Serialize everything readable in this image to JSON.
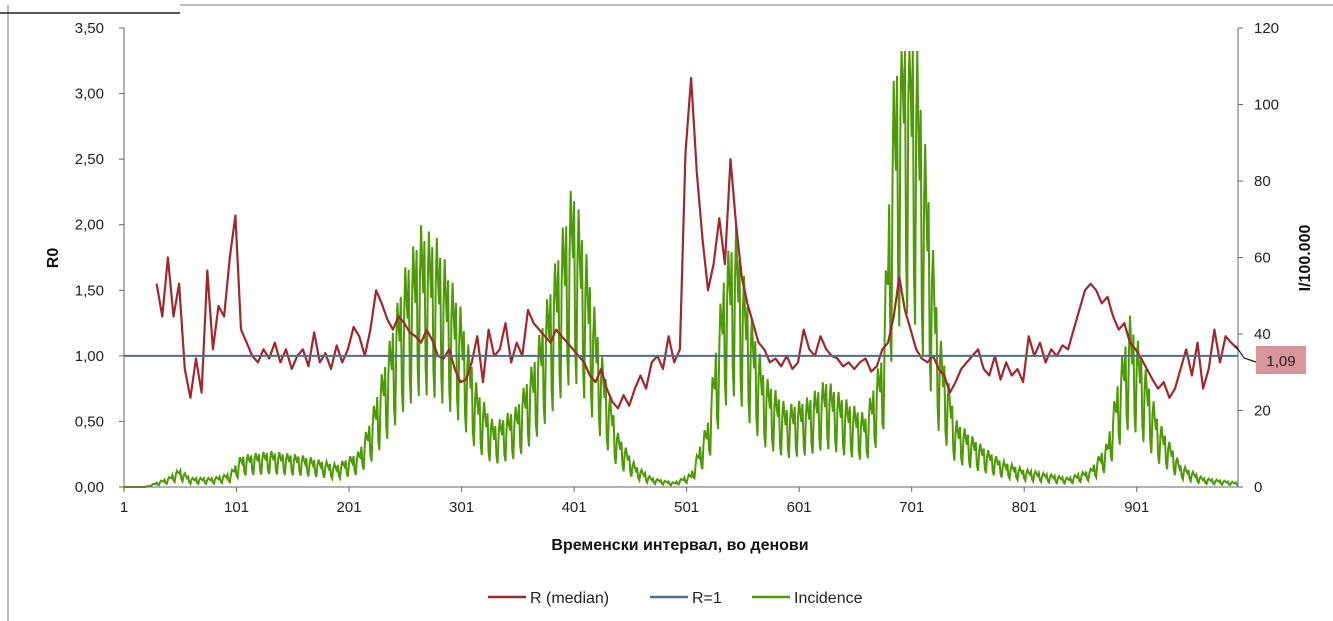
{
  "chart_data": {
    "type": "line",
    "title": "",
    "xlabel": "Временски интервал, во денови",
    "ylabel": "R0",
    "y2label": "I/100.000",
    "xlim": [
      1,
      991
    ],
    "ylim": [
      0,
      3.5
    ],
    "y2lim": [
      0,
      120
    ],
    "x_ticks": [
      "1",
      "101",
      "201",
      "301",
      "401",
      "501",
      "601",
      "701",
      "801",
      "901"
    ],
    "y_ticks": [
      "0,00",
      "0,50",
      "1,00",
      "1,50",
      "2,00",
      "2,50",
      "3,00",
      "3,50"
    ],
    "y2_ticks": [
      "0",
      "20",
      "40",
      "60",
      "80",
      "100",
      "120"
    ],
    "grid": false,
    "legend": "bottom",
    "callout": "1,09",
    "series": [
      {
        "name": "R (median)",
        "axis": "left",
        "color": "#a0282d",
        "x": [
          30,
          35,
          40,
          45,
          50,
          55,
          60,
          65,
          70,
          75,
          80,
          85,
          90,
          95,
          100,
          105,
          110,
          115,
          120,
          125,
          130,
          135,
          140,
          145,
          150,
          155,
          160,
          165,
          170,
          175,
          180,
          185,
          190,
          195,
          200,
          205,
          210,
          215,
          220,
          225,
          230,
          235,
          240,
          245,
          250,
          255,
          260,
          265,
          270,
          275,
          280,
          285,
          290,
          295,
          300,
          305,
          310,
          315,
          320,
          325,
          330,
          335,
          340,
          345,
          350,
          355,
          360,
          365,
          370,
          375,
          380,
          385,
          390,
          395,
          400,
          405,
          410,
          415,
          420,
          425,
          430,
          435,
          440,
          445,
          450,
          455,
          460,
          465,
          470,
          475,
          480,
          485,
          490,
          495,
          500,
          505,
          510,
          515,
          520,
          525,
          530,
          535,
          540,
          545,
          550,
          555,
          560,
          565,
          570,
          575,
          580,
          585,
          590,
          595,
          600,
          605,
          610,
          615,
          620,
          625,
          630,
          635,
          640,
          645,
          650,
          655,
          660,
          665,
          670,
          675,
          680,
          685,
          690,
          695,
          700,
          705,
          710,
          715,
          720,
          725,
          730,
          735,
          740,
          745,
          750,
          755,
          760,
          765,
          770,
          775,
          780,
          785,
          790,
          795,
          800,
          805,
          810,
          815,
          820,
          825,
          830,
          835,
          840,
          845,
          850,
          855,
          860,
          865,
          870,
          875,
          880,
          885,
          890,
          895,
          900,
          905,
          910,
          915,
          920,
          925,
          930,
          935,
          940,
          945,
          950,
          955,
          960,
          965,
          970,
          975,
          980,
          985,
          991
        ],
        "values": [
          1.55,
          1.3,
          1.75,
          1.3,
          1.55,
          0.9,
          0.68,
          0.98,
          0.72,
          1.65,
          1.05,
          1.38,
          1.3,
          1.75,
          2.07,
          1.2,
          1.1,
          1.0,
          0.95,
          1.05,
          0.98,
          1.1,
          0.95,
          1.05,
          0.9,
          1.0,
          1.05,
          0.92,
          1.18,
          0.95,
          1.02,
          0.9,
          1.08,
          0.95,
          1.05,
          1.22,
          1.15,
          1.0,
          1.2,
          1.5,
          1.4,
          1.28,
          1.2,
          1.3,
          1.25,
          1.18,
          1.15,
          1.1,
          1.2,
          1.12,
          1.0,
          0.98,
          1.05,
          0.9,
          0.8,
          0.82,
          0.95,
          1.15,
          0.8,
          1.2,
          1.0,
          1.05,
          1.25,
          0.95,
          1.1,
          1.0,
          1.35,
          1.25,
          1.2,
          1.15,
          1.1,
          1.2,
          1.15,
          1.1,
          1.05,
          1.0,
          0.95,
          0.85,
          0.8,
          0.9,
          0.75,
          0.65,
          0.6,
          0.7,
          0.62,
          0.75,
          0.85,
          0.75,
          0.95,
          1.0,
          0.9,
          1.15,
          0.95,
          1.05,
          2.55,
          3.12,
          2.4,
          1.9,
          1.5,
          1.7,
          2.05,
          1.7,
          2.5,
          2.0,
          1.6,
          1.4,
          1.25,
          1.1,
          1.05,
          0.95,
          0.98,
          0.92,
          1.0,
          0.9,
          0.95,
          1.2,
          1.05,
          1.0,
          1.15,
          1.05,
          1.0,
          0.98,
          0.92,
          0.95,
          0.9,
          0.95,
          0.98,
          0.88,
          0.92,
          1.05,
          1.1,
          1.3,
          1.6,
          1.35,
          1.2,
          1.05,
          0.98,
          0.95,
          1.0,
          0.9,
          0.85,
          0.72,
          0.8,
          0.9,
          0.95,
          1.0,
          1.05,
          0.9,
          0.85,
          1.0,
          0.82,
          0.95,
          0.85,
          0.9,
          0.8,
          1.15,
          1.0,
          1.1,
          0.95,
          1.05,
          1.0,
          1.08,
          1.05,
          1.2,
          1.35,
          1.5,
          1.55,
          1.5,
          1.4,
          1.45,
          1.3,
          1.2,
          1.25,
          1.1,
          1.05,
          0.98,
          0.9,
          0.82,
          0.75,
          0.8,
          0.68,
          0.75,
          0.9,
          1.05,
          0.85,
          1.1,
          0.75,
          0.9,
          1.2,
          0.95,
          1.15,
          1.1,
          1.05
        ]
      },
      {
        "name": "R=1",
        "axis": "left",
        "color": "#4e6e8a",
        "x": [
          1,
          991
        ],
        "values": [
          1.0,
          1.0
        ]
      },
      {
        "name": "Incidence",
        "axis": "right",
        "color": "#4e9a06",
        "oscillation": "weekly",
        "x": [
          1,
          20,
          40,
          50,
          60,
          80,
          95,
          105,
          130,
          160,
          190,
          210,
          220,
          235,
          250,
          265,
          280,
          300,
          315,
          330,
          350,
          365,
          380,
          395,
          400,
          410,
          425,
          440,
          455,
          470,
          490,
          505,
          520,
          535,
          545,
          555,
          570,
          590,
          610,
          625,
          640,
          660,
          675,
          685,
          695,
          705,
          715,
          725,
          740,
          760,
          780,
          800,
          820,
          840,
          860,
          875,
          885,
          895,
          905,
          920,
          940,
          960,
          991
        ],
        "values": [
          0,
          0,
          2,
          4,
          2,
          2,
          3,
          7,
          8,
          7,
          5,
          8,
          15,
          30,
          48,
          58,
          55,
          40,
          22,
          14,
          18,
          28,
          45,
          62,
          68,
          55,
          30,
          12,
          5,
          2,
          1,
          3,
          15,
          50,
          58,
          42,
          25,
          18,
          20,
          24,
          20,
          16,
          30,
          90,
          110,
          100,
          70,
          35,
          15,
          10,
          6,
          4,
          3,
          2,
          4,
          10,
          25,
          38,
          30,
          15,
          5,
          2,
          1
        ]
      }
    ]
  }
}
